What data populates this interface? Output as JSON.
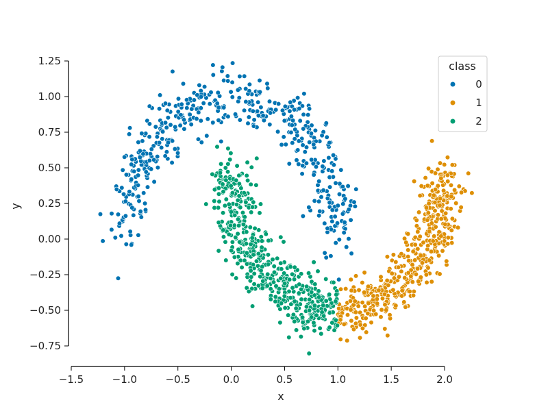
{
  "chart_data": {
    "type": "scatter",
    "title": "",
    "xlabel": "x",
    "ylabel": "y",
    "xlim": [
      -1.5,
      2.0
    ],
    "ylim": [
      -0.75,
      1.25
    ],
    "xticks": [
      "−1.5",
      "−1.0",
      "−0.5",
      "0.0",
      "0.5",
      "1.0",
      "1.5",
      "2.0"
    ],
    "xtick_values": [
      -1.5,
      -1.0,
      -0.5,
      0.0,
      0.5,
      1.0,
      1.5,
      2.0
    ],
    "yticks": [
      "−0.75",
      "−0.50",
      "−0.25",
      "0.00",
      "0.25",
      "0.50",
      "0.75",
      "1.00",
      "1.25"
    ],
    "ytick_values": [
      -0.75,
      -0.5,
      -0.25,
      0.0,
      0.25,
      0.5,
      0.75,
      1.0,
      1.25
    ],
    "grid": false,
    "legend": {
      "title": "class",
      "placement": "top-right"
    },
    "series": [
      {
        "name": "0",
        "color": "#0173b2",
        "points": []
      },
      {
        "name": "1",
        "color": "#de8f05",
        "points": []
      },
      {
        "name": "2",
        "color": "#029e73",
        "points": []
      }
    ]
  }
}
